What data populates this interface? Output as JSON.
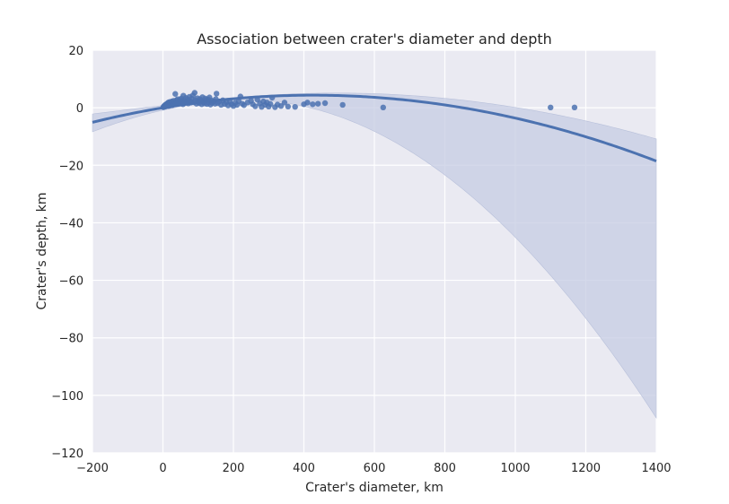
{
  "chart_data": {
    "type": "scatter",
    "title": "Association between crater's diameter and depth",
    "xlabel": "Crater's diameter, km",
    "ylabel": "Crater's depth, km",
    "xlim": [
      -200,
      1400
    ],
    "ylim": [
      -120,
      20
    ],
    "xticks": [
      -200,
      0,
      200,
      400,
      600,
      800,
      1000,
      1200,
      1400
    ],
    "yticks": [
      -120,
      -100,
      -80,
      -60,
      -40,
      -20,
      0,
      20
    ],
    "xtick_labels": [
      "−200",
      "0",
      "200",
      "400",
      "600",
      "800",
      "1000",
      "1200",
      "1400"
    ],
    "ytick_labels": [
      "−120",
      "−100",
      "−80",
      "−60",
      "−40",
      "−20",
      "0",
      "20"
    ],
    "grid": true,
    "colors": {
      "background": "#eaeaf2",
      "grid": "#ffffff",
      "points": "#4c72b0",
      "fit_line": "#4c72b0",
      "confidence_band": "#c5cce3"
    },
    "series": [
      {
        "points": [
          [
            1,
            0.2
          ],
          [
            2,
            0.3
          ],
          [
            3,
            0.5
          ],
          [
            4,
            0.6
          ],
          [
            5,
            0.8
          ],
          [
            6,
            0.4
          ],
          [
            7,
            1.0
          ],
          [
            8,
            0.5
          ],
          [
            9,
            1.2
          ],
          [
            10,
            0.9
          ],
          [
            11,
            1.3
          ],
          [
            12,
            0.7
          ],
          [
            13,
            1.5
          ],
          [
            14,
            1.0
          ],
          [
            15,
            1.8
          ],
          [
            16,
            0.6
          ],
          [
            17,
            1.4
          ],
          [
            18,
            1.1
          ],
          [
            19,
            2.0
          ],
          [
            20,
            0.8
          ],
          [
            22,
            1.6
          ],
          [
            24,
            1.2
          ],
          [
            25,
            2.2
          ],
          [
            27,
            0.9
          ],
          [
            28,
            1.7
          ],
          [
            30,
            2.4
          ],
          [
            32,
            1.3
          ],
          [
            34,
            2.0
          ],
          [
            35,
            4.8
          ],
          [
            36,
            1.5
          ],
          [
            38,
            2.6
          ],
          [
            40,
            1.8
          ],
          [
            42,
            3.0
          ],
          [
            44,
            1.4
          ],
          [
            45,
            2.3
          ],
          [
            48,
            2.8
          ],
          [
            50,
            1.6
          ],
          [
            52,
            3.2
          ],
          [
            55,
            2.1
          ],
          [
            57,
            1.2
          ],
          [
            58,
            4.2
          ],
          [
            60,
            2.5
          ],
          [
            62,
            1.7
          ],
          [
            65,
            3.4
          ],
          [
            67,
            2.0
          ],
          [
            70,
            2.9
          ],
          [
            72,
            1.5
          ],
          [
            75,
            3.8
          ],
          [
            78,
            2.2
          ],
          [
            80,
            1.8
          ],
          [
            82,
            3.1
          ],
          [
            85,
            4.3
          ],
          [
            88,
            1.9
          ],
          [
            90,
            5.2
          ],
          [
            92,
            2.6
          ],
          [
            95,
            1.4
          ],
          [
            98,
            3.3
          ],
          [
            100,
            2.1
          ],
          [
            103,
            1.6
          ],
          [
            105,
            3.0
          ],
          [
            108,
            2.4
          ],
          [
            110,
            1.2
          ],
          [
            112,
            3.7
          ],
          [
            115,
            2.0
          ],
          [
            118,
            1.5
          ],
          [
            120,
            3.2
          ],
          [
            123,
            2.7
          ],
          [
            125,
            1.3
          ],
          [
            128,
            2.9
          ],
          [
            130,
            1.8
          ],
          [
            132,
            3.6
          ],
          [
            135,
            1.1
          ],
          [
            138,
            2.5
          ],
          [
            140,
            1.7
          ],
          [
            145,
            2.3
          ],
          [
            148,
            1.4
          ],
          [
            150,
            3.0
          ],
          [
            152,
            4.9
          ],
          [
            155,
            1.6
          ],
          [
            160,
            2.2
          ],
          [
            165,
            1.0
          ],
          [
            170,
            2.6
          ],
          [
            175,
            1.3
          ],
          [
            180,
            1.9
          ],
          [
            185,
            0.8
          ],
          [
            190,
            2.1
          ],
          [
            195,
            1.2
          ],
          [
            200,
            0.6
          ],
          [
            205,
            1.7
          ],
          [
            210,
            1.0
          ],
          [
            215,
            2.3
          ],
          [
            220,
            3.9
          ],
          [
            225,
            1.4
          ],
          [
            230,
            0.9
          ],
          [
            240,
            1.8
          ],
          [
            250,
            2.4
          ],
          [
            255,
            1.2
          ],
          [
            262,
            0.5
          ],
          [
            268,
            2.8
          ],
          [
            275,
            1.5
          ],
          [
            280,
            0.3
          ],
          [
            285,
            2.2
          ],
          [
            290,
            1.0
          ],
          [
            295,
            1.8
          ],
          [
            300,
            0.4
          ],
          [
            305,
            1.3
          ],
          [
            310,
            3.5
          ],
          [
            318,
            0.2
          ],
          [
            325,
            1.1
          ],
          [
            335,
            0.6
          ],
          [
            345,
            1.8
          ],
          [
            355,
            0.4
          ],
          [
            375,
            0.3
          ],
          [
            400,
            1.2
          ],
          [
            410,
            1.8
          ],
          [
            425,
            1.2
          ],
          [
            440,
            1.4
          ],
          [
            460,
            1.6
          ],
          [
            510,
            1.0
          ],
          [
            625,
            0.1
          ],
          [
            1100,
            0.1
          ],
          [
            1168,
            0.1
          ]
        ]
      }
    ],
    "fit": {
      "type": "quadratic",
      "coefficients": [
        0.0,
        0.0205,
        -2.41e-05
      ],
      "band": {
        "upper_max_offset": 7.4,
        "lower_max_offset": 89.0,
        "pivot_x": 150
      }
    }
  }
}
